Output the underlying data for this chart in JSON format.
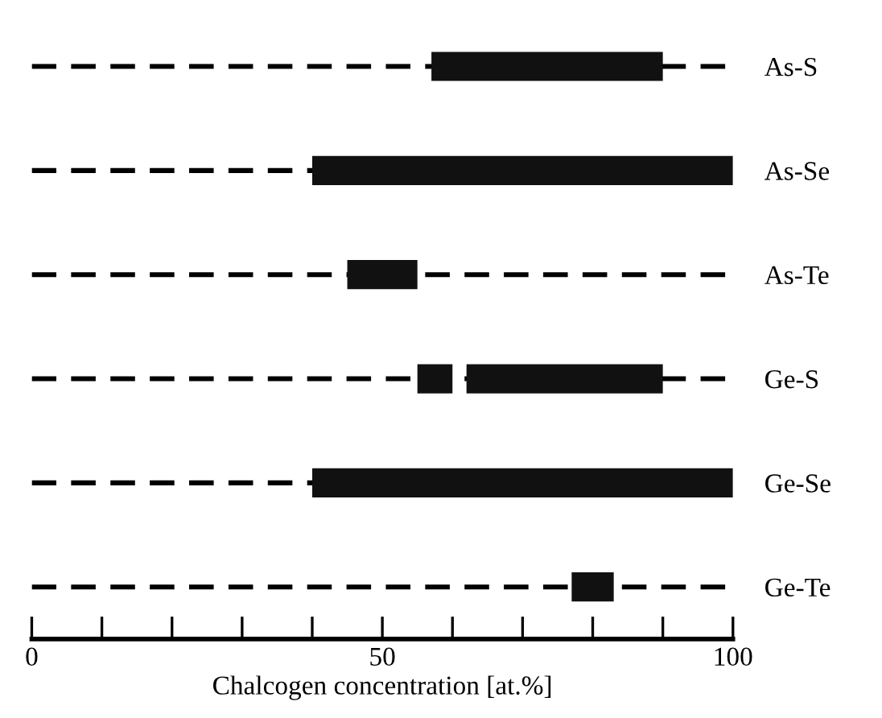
{
  "chart_data": {
    "type": "bar",
    "orientation": "horizontal",
    "xlabel": "Chalcogen concentration [at.%]",
    "categories": [
      "As-S",
      "As-Se",
      "As-Te",
      "Ge-S",
      "Ge-Se",
      "Ge-Te"
    ],
    "series": [
      {
        "color": "#111111",
        "base": [
          57,
          40,
          45,
          62,
          40,
          77
        ],
        "values": [
          33,
          60,
          10,
          28,
          60,
          6
        ]
      },
      {
        "color": "#111111",
        "base": [
          null,
          null,
          null,
          55,
          null,
          null
        ],
        "values": [
          null,
          null,
          null,
          5,
          null,
          null
        ]
      }
    ],
    "xlim": [
      0,
      100
    ],
    "xticks": [
      0,
      {
        "value": 10,
        "label": null
      },
      {
        "value": 20,
        "label": null
      },
      {
        "value": 30,
        "label": null
      },
      {
        "value": 40,
        "label": null
      },
      50,
      {
        "value": 60,
        "label": null
      },
      {
        "value": 70,
        "label": null
      },
      {
        "value": 80,
        "label": null
      },
      {
        "value": 90,
        "label": null
      },
      100
    ],
    "grid": "y",
    "legend": false
  }
}
